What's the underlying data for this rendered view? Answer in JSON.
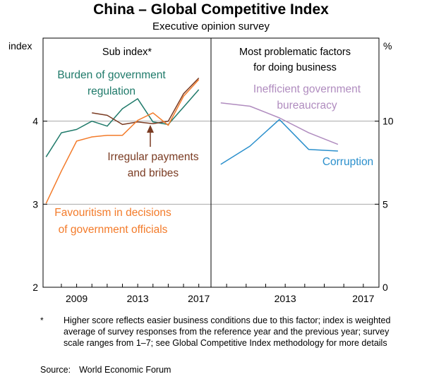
{
  "title": "China – Global Competitive Index",
  "subtitle": "Executive opinion survey",
  "chart_data": [
    {
      "type": "line",
      "panel_title": "Sub index*",
      "ylabel": "index",
      "ylim": [
        2,
        5
      ],
      "yticks": [
        "2",
        "3",
        "4"
      ],
      "xlim": [
        2007.3,
        2018.3
      ],
      "xticks": [
        "2009",
        "2013",
        "2017"
      ],
      "grid": true,
      "series": [
        {
          "name": "Burden of government regulation",
          "color": "#1f7a6a",
          "label_lines": [
            "Burden of government",
            "regulation"
          ],
          "x": [
            2007.5,
            2008.5,
            2009.5,
            2010.5,
            2011.5,
            2012.5,
            2013.5,
            2014.5,
            2015.5,
            2016.5,
            2017.5
          ],
          "y": [
            3.57,
            3.86,
            3.9,
            4.0,
            3.94,
            4.15,
            4.27,
            3.99,
            3.96,
            4.17,
            4.38
          ]
        },
        {
          "name": "Irregular payments and bribes",
          "color": "#7a3b22",
          "label_lines": [
            "Irregular payments",
            "and bribes"
          ],
          "x": [
            2010.5,
            2011.5,
            2012.5,
            2013.5,
            2014.5,
            2015.5,
            2016.5,
            2017.5
          ],
          "y": [
            4.1,
            4.07,
            3.96,
            3.99,
            3.97,
            4.0,
            4.33,
            4.52
          ]
        },
        {
          "name": "Favouritism in decisions of government officials",
          "color": "#f37b2a",
          "label_lines": [
            "Favouritism in decisions",
            "of government officials"
          ],
          "x": [
            2007.5,
            2008.5,
            2009.5,
            2010.5,
            2011.5,
            2012.5,
            2013.5,
            2014.5,
            2015.5,
            2016.5,
            2017.5
          ],
          "y": [
            3.01,
            3.4,
            3.76,
            3.81,
            3.83,
            3.83,
            4.01,
            4.1,
            3.95,
            4.3,
            4.5
          ]
        }
      ]
    },
    {
      "type": "line",
      "panel_title_lines": [
        "Most problematic factors",
        "for doing business"
      ],
      "ylabel": "%",
      "ylim": [
        0,
        15
      ],
      "yticks": [
        "0",
        "5",
        "10"
      ],
      "xlim": [
        2009.7,
        2018.3
      ],
      "xticks": [
        "2013",
        "2017"
      ],
      "grid": true,
      "series": [
        {
          "name": "Inefficient government bureaucracy",
          "color": "#b08cbf",
          "label_lines": [
            "Inefficient government",
            "bureaucracy"
          ],
          "x": [
            2010.2,
            2011.7,
            2013.2,
            2014.7,
            2016.2
          ],
          "y": [
            11.1,
            10.9,
            10.2,
            9.3,
            8.6
          ]
        },
        {
          "name": "Corruption",
          "color": "#2a8fcc",
          "label_lines": [
            "Corruption"
          ],
          "x": [
            2010.2,
            2011.7,
            2013.2,
            2014.7,
            2016.2
          ],
          "y": [
            7.4,
            8.5,
            10.1,
            8.3,
            8.2
          ]
        }
      ]
    }
  ],
  "footnote": {
    "marker": "*",
    "text": "Higher score reflects easier business conditions due to this factor; index is weighted average of survey responses from the reference year and the previous year; survey scale ranges from 1–7; see Global Competitive Index methodology for more details"
  },
  "source": {
    "label": "Source:",
    "value": "World Economic Forum"
  }
}
